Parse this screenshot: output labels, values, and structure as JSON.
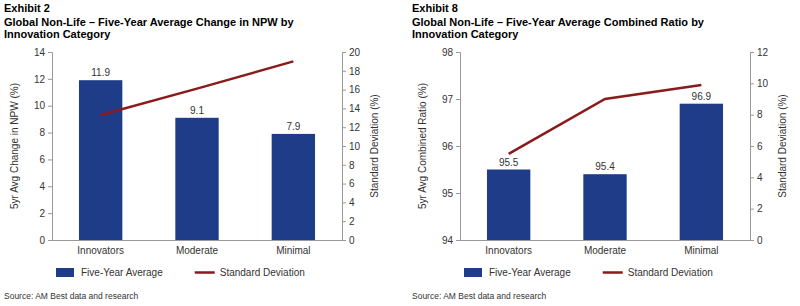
{
  "chart_data": [
    {
      "type": "bar",
      "exhibit": "Exhibit 2",
      "title": "Global Non-Life – Five-Year Average Change in NPW by Innovation Category",
      "categories": [
        "Innovators",
        "Moderate",
        "Minimal"
      ],
      "series": [
        {
          "name": "Five-Year Average",
          "type": "bar",
          "color": "#1f3c88",
          "data_labels": true,
          "values": [
            11.9,
            9.1,
            7.9
          ]
        },
        {
          "name": "Standard Deviation",
          "type": "line",
          "axis": "y2",
          "color": "#8b1a1a",
          "values": [
            13.3,
            16.1,
            19.0
          ]
        }
      ],
      "ylabel": "5yr Avg Change in NPW (%)",
      "y2label": "Standard Deviation (%)",
      "ylim": [
        0,
        14
      ],
      "yticks": [
        0,
        2,
        4,
        6,
        8,
        10,
        12,
        14
      ],
      "y2lim": [
        0,
        20
      ],
      "y2ticks": [
        0,
        2,
        4,
        6,
        8,
        10,
        12,
        14,
        16,
        18,
        20
      ],
      "legend": "bottom",
      "source": "Source: AM Best data and research"
    },
    {
      "type": "bar",
      "exhibit": "Exhibit 8",
      "title": "Global Non-Life – Five-Year Average Combined Ratio by Innovation Category",
      "categories": [
        "Innovators",
        "Moderate",
        "Minimal"
      ],
      "series": [
        {
          "name": "Five-Year Average",
          "type": "bar",
          "color": "#1f3c88",
          "data_labels": true,
          "values": [
            95.5,
            95.4,
            96.9
          ]
        },
        {
          "name": "Standard Deviation",
          "type": "line",
          "axis": "y2",
          "color": "#8b1a1a",
          "values": [
            5.5,
            9.0,
            9.9
          ]
        }
      ],
      "ylabel": "5yr Avg Combined Ratio (%)",
      "y2label": "Standard Deviation (%)",
      "ylim": [
        94,
        98
      ],
      "yticks": [
        94,
        95,
        96,
        97,
        98
      ],
      "y2lim": [
        0,
        12
      ],
      "y2ticks": [
        0,
        2,
        4,
        6,
        8,
        10,
        12
      ],
      "legend": "bottom",
      "source": "Source: AM Best data and research"
    }
  ]
}
